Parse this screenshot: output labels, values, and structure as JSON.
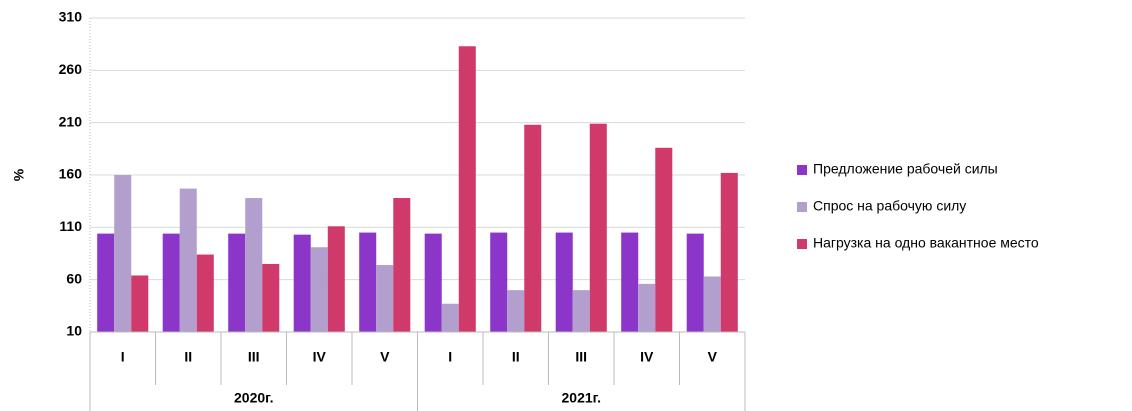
{
  "chart_data": {
    "type": "bar",
    "y_label": "%",
    "groups": [
      {
        "label": "2020г.",
        "categories": [
          "I",
          "II",
          "III",
          "IV",
          "V"
        ]
      },
      {
        "label": "2021г.",
        "categories": [
          "I",
          "II",
          "III",
          "IV",
          "V"
        ]
      }
    ],
    "series": [
      {
        "name": "Предложение рабочей силы",
        "color": "#8b35c9",
        "values": [
          104,
          104,
          104,
          103,
          105,
          104,
          105,
          105,
          105,
          104
        ]
      },
      {
        "name": "Спрос на рабочую силу",
        "color": "#b39fce",
        "values": [
          160,
          147,
          138,
          91,
          74,
          37,
          50,
          50,
          56,
          63
        ]
      },
      {
        "name": "Нагрузка на одно вакантное место",
        "color": "#cf3a6a",
        "values": [
          64,
          84,
          75,
          111,
          138,
          283,
          208,
          209,
          186,
          162
        ]
      }
    ],
    "ylim": [
      10,
      310
    ],
    "yticks": [
      10,
      60,
      110,
      160,
      210,
      260,
      310
    ],
    "grid": true,
    "legend": "right"
  }
}
